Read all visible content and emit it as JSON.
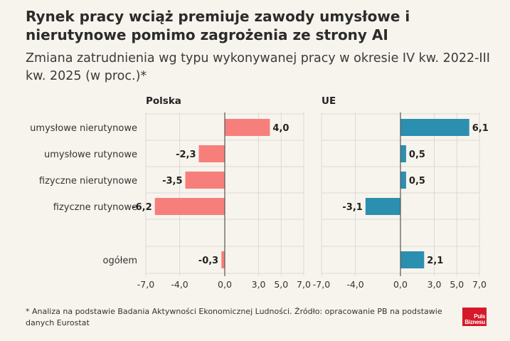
{
  "header": {
    "title": "Rynek pracy wciąż premiuje zawody umysłowe i nierutynowe pomimo zagrożenia ze strony AI",
    "subtitle": "Zmiana zatrudnienia wg typu wykonywanej pracy w okresie IV kw. 2022-III kw. 2025 (w proc.)*"
  },
  "chart_data": {
    "type": "bar",
    "orientation": "horizontal",
    "categories": [
      "umysłowe nierutynowe",
      "umysłowe rutynowe",
      "fizyczne nierutynowe",
      "fizyczne rutynowe",
      "ogółem"
    ],
    "panels": [
      {
        "title": "Polska",
        "values": [
          4.0,
          -2.3,
          -3.5,
          -6.2,
          -0.3
        ],
        "value_labels": [
          "4,0",
          "-2,3",
          "-3,5",
          "-6,2",
          "-0,3"
        ],
        "color": "#f77f7b"
      },
      {
        "title": "UE",
        "values": [
          6.1,
          0.5,
          0.5,
          -3.1,
          2.1
        ],
        "value_labels": [
          "6,1",
          "0,5",
          "0,5",
          "-3,1",
          "2,1"
        ],
        "color": "#2b8fb0"
      }
    ],
    "xlim": [
      -7.0,
      7.0
    ],
    "ticks": [
      -7.0,
      -4.0,
      0.0,
      3.0,
      5.0,
      7.0
    ],
    "tick_labels": [
      "-7,0",
      "-4,0",
      "0,0",
      "3,0",
      "5,0",
      "7,0"
    ],
    "grid": true
  },
  "footer": {
    "note": "* Analiza na podstawie Badania Aktywności Ekonomicznej Ludności. Źródło: opracowanie PB na podstawie danych Eurostat",
    "logo_line1": "Puls",
    "logo_line2": "Biznesu"
  }
}
